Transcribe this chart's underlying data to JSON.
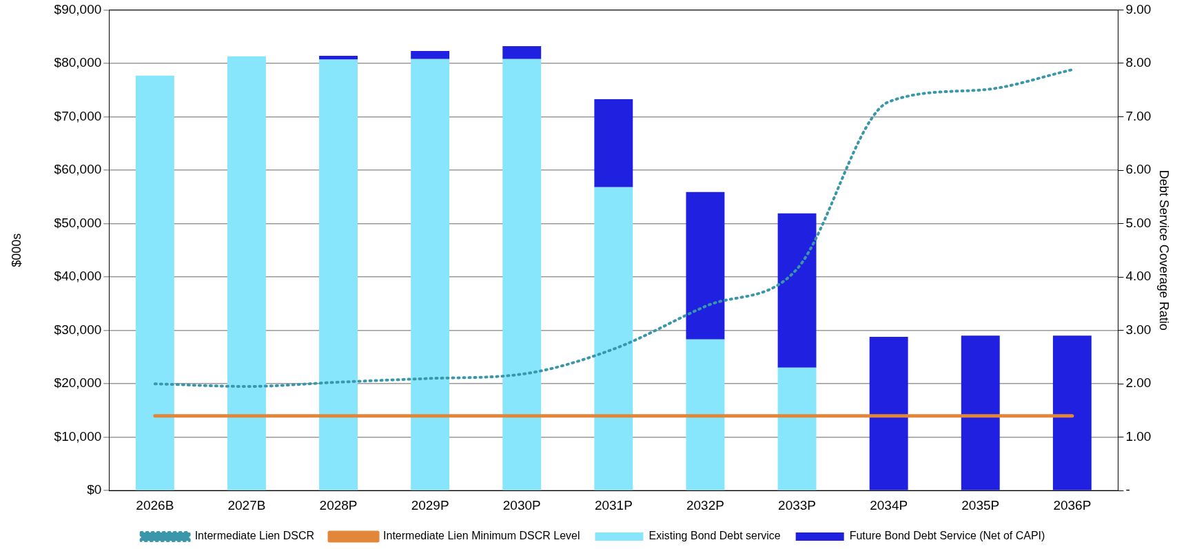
{
  "chart_data": {
    "type": "bar",
    "stacked": true,
    "ylabel": "$000s",
    "y2label": "Debt Service Coverage Ratio",
    "categories": [
      "2026B",
      "2027B",
      "2028P",
      "2029P",
      "2030P",
      "2031P",
      "2032P",
      "2033P",
      "2034P",
      "2035P",
      "2036P"
    ],
    "series": [
      {
        "name": "Existing Bond Debt service",
        "color": "#87e6fb",
        "values": [
          77700,
          81300,
          80700,
          80800,
          80800,
          56800,
          28300,
          23000,
          null,
          null,
          null
        ]
      },
      {
        "name": "Future Bond Debt Service (Net of CAPI)",
        "color": "#2020e0",
        "values": [
          null,
          null,
          700,
          1500,
          2400,
          16500,
          27600,
          28900,
          28800,
          29000,
          29000
        ]
      },
      {
        "name": "Intermediate Lien DSCR",
        "type": "line",
        "axis": "y2",
        "color": "#3a97ab",
        "line_style": "dotted",
        "marker": "none",
        "values": [
          2.0,
          1.95,
          2.03,
          2.1,
          2.18,
          2.65,
          3.45,
          4.15,
          7.28,
          7.5,
          7.88
        ]
      },
      {
        "name": "Intermediate Lien Minimum DSCR Level",
        "type": "line",
        "axis": "y2",
        "color": "#e2873a",
        "line_style": "solid",
        "marker": "none",
        "values": [
          1.4,
          1.4,
          1.4,
          1.4,
          1.4,
          1.4,
          1.4,
          1.4,
          1.4,
          1.4,
          1.4
        ]
      }
    ],
    "ylim": [
      0,
      90000
    ],
    "yticks": [
      {
        "value": 0,
        "label": "$0"
      },
      {
        "value": 10000,
        "label": "$10,000"
      },
      {
        "value": 20000,
        "label": "$20,000"
      },
      {
        "value": 30000,
        "label": "$30,000"
      },
      {
        "value": 40000,
        "label": "$40,000"
      },
      {
        "value": 50000,
        "label": "$50,000"
      },
      {
        "value": 60000,
        "label": "$60,000"
      },
      {
        "value": 70000,
        "label": "$70,000"
      },
      {
        "value": 80000,
        "label": "$80,000"
      },
      {
        "value": 90000,
        "label": "$90,000"
      }
    ],
    "y2lim": [
      0,
      9
    ],
    "y2ticks": [
      {
        "value": 0,
        "label": "-"
      },
      {
        "value": 1,
        "label": "1.00"
      },
      {
        "value": 2,
        "label": "2.00"
      },
      {
        "value": 3,
        "label": "3.00"
      },
      {
        "value": 4,
        "label": "4.00"
      },
      {
        "value": 5,
        "label": "5.00"
      },
      {
        "value": 6,
        "label": "6.00"
      },
      {
        "value": 7,
        "label": "7.00"
      },
      {
        "value": 8,
        "label": "8.00"
      },
      {
        "value": 9,
        "label": "9.00"
      }
    ],
    "grid": "y",
    "legend": "bottom"
  }
}
